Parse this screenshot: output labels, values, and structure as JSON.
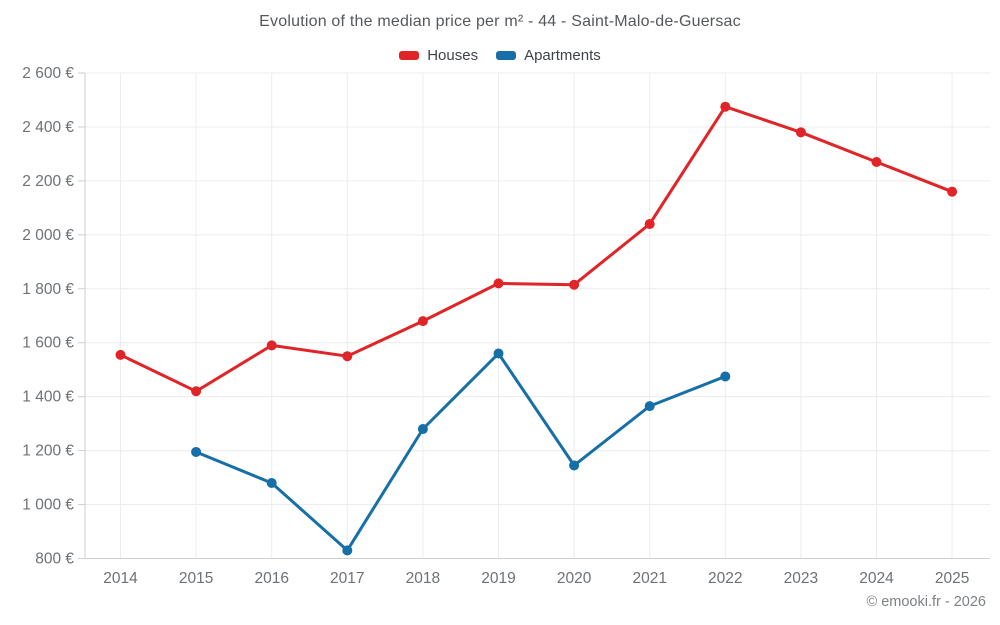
{
  "title": "Evolution of the median price per m² - 44 - Saint-Malo-de-Guersac",
  "footer": "© emooki.fr - 2026",
  "legend": {
    "items": [
      {
        "label": "Houses",
        "color": "#e02427"
      },
      {
        "label": "Apartments",
        "color": "#166fa6"
      }
    ]
  },
  "chart_data": {
    "type": "line",
    "title": "Evolution of the median price per m² - 44 - Saint-Malo-de-Guersac",
    "x": [
      2014,
      2015,
      2016,
      2017,
      2018,
      2019,
      2020,
      2021,
      2022,
      2023,
      2024,
      2025
    ],
    "series": [
      {
        "name": "Houses",
        "color": "#e02427",
        "values": [
          1555,
          1420,
          1590,
          1550,
          1680,
          1820,
          1815,
          2040,
          2475,
          2380,
          2270,
          2160
        ]
      },
      {
        "name": "Apartments",
        "color": "#166fa6",
        "values": [
          null,
          1195,
          1080,
          830,
          1280,
          1560,
          1145,
          1365,
          1475,
          null,
          null,
          null
        ]
      }
    ],
    "ylim": [
      800,
      2600
    ],
    "ytick_step": 200,
    "ytick_suffix": " €",
    "grid": true,
    "legend_position": "top",
    "xlabel": "",
    "ylabel": ""
  },
  "style": {
    "grid_color": "#ececec",
    "axis_color": "#cfcfcf",
    "tick_label_color": "#6d7276",
    "point_radius": 5,
    "line_width": 3
  }
}
